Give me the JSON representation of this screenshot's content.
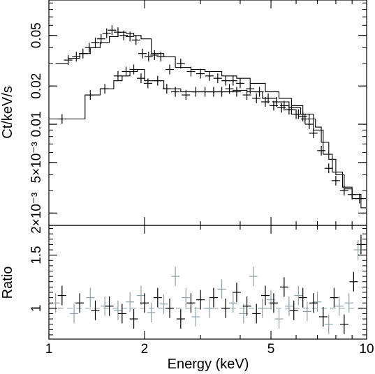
{
  "chart_data": [
    {
      "panel": "spectrum",
      "type": "line",
      "ylabel": "Ct/keV/s",
      "xscale": "log",
      "yscale": "log",
      "xlim": [
        1,
        10
      ],
      "ylim": [
        0.0016,
        0.095
      ],
      "y_ticks": [
        {
          "value": 0.002,
          "label": "2×10⁻³"
        },
        {
          "value": 0.005,
          "label": "5×10⁻³"
        },
        {
          "value": 0.01,
          "label": "0.01"
        },
        {
          "value": 0.02,
          "label": "0.02"
        },
        {
          "value": 0.05,
          "label": "0.05"
        }
      ],
      "series": [
        {
          "color": "#000000",
          "style": "data crosses",
          "x": [
            1.15,
            1.22,
            1.28,
            1.34,
            1.4,
            1.46,
            1.52,
            1.58,
            1.65,
            1.72,
            1.8,
            1.88,
            1.97,
            2.06,
            2.15,
            2.25
          ],
          "y": [
            0.032,
            0.034,
            0.036,
            0.04,
            0.044,
            0.047,
            0.052,
            0.055,
            0.053,
            0.05,
            0.049,
            0.046,
            0.036,
            0.034,
            0.035,
            0.034
          ]
        },
        {
          "color": "#000000",
          "style": "data crosses",
          "x": [
            2.4,
            2.6,
            2.8,
            3.0,
            3.2,
            3.4,
            3.6,
            3.8,
            4.0,
            4.3,
            4.6,
            4.9,
            5.2,
            5.5,
            5.8,
            6.1,
            6.4,
            6.8,
            7.2,
            7.6,
            8.0,
            8.5,
            9.0,
            9.5
          ],
          "y": [
            0.027,
            0.03,
            0.026,
            0.025,
            0.024,
            0.023,
            0.022,
            0.022,
            0.021,
            0.019,
            0.018,
            0.016,
            0.015,
            0.014,
            0.013,
            0.012,
            0.011,
            0.0085,
            0.0062,
            0.0045,
            0.0036,
            0.003,
            0.0028,
            0.0026
          ]
        },
        {
          "color": "#000000",
          "style": "data crosses",
          "x": [
            1.1,
            1.35,
            1.5,
            1.65,
            1.75,
            1.85,
            1.95,
            2.05,
            2.2,
            2.35,
            2.5,
            2.7,
            2.9,
            3.1,
            3.3,
            3.5,
            3.7,
            3.9,
            4.2,
            4.5,
            4.8,
            5.1,
            5.4,
            5.7,
            6.0,
            6.3,
            6.6
          ],
          "y": [
            0.011,
            0.017,
            0.019,
            0.024,
            0.026,
            0.027,
            0.023,
            0.021,
            0.022,
            0.019,
            0.018,
            0.017,
            0.018,
            0.018,
            0.018,
            0.018,
            0.019,
            0.018,
            0.017,
            0.016,
            0.015,
            0.014,
            0.0135,
            0.013,
            0.012,
            0.0115,
            0.01
          ]
        },
        {
          "color": "#000000",
          "style": "model step",
          "x": [
            1.05,
            1.15,
            1.25,
            1.35,
            1.45,
            1.55,
            1.65,
            1.75,
            1.85,
            1.95,
            2.1,
            2.3,
            2.5,
            2.8,
            3.1,
            3.5,
            3.9,
            4.3,
            4.8,
            5.3,
            5.8,
            6.3,
            6.8,
            7.3,
            7.8,
            8.4,
            9.0,
            9.6
          ],
          "y": [
            0.03,
            0.033,
            0.036,
            0.04,
            0.044,
            0.049,
            0.053,
            0.052,
            0.05,
            0.047,
            0.036,
            0.034,
            0.028,
            0.027,
            0.026,
            0.024,
            0.023,
            0.021,
            0.018,
            0.016,
            0.014,
            0.012,
            0.009,
            0.0058,
            0.0042,
            0.0032,
            0.0028,
            0.0026
          ]
        },
        {
          "color": "#000000",
          "style": "model step",
          "x": [
            1.0,
            1.3,
            1.45,
            1.6,
            1.7,
            1.8,
            1.9,
            2.0,
            2.3,
            2.6,
            3.0,
            3.4,
            3.8,
            4.2,
            4.7,
            5.2,
            5.7,
            6.2,
            6.6,
            6.9,
            7.2,
            7.6,
            8.0,
            8.5,
            9.0,
            9.6
          ],
          "y": [
            0.011,
            0.017,
            0.019,
            0.022,
            0.024,
            0.026,
            0.027,
            0.022,
            0.019,
            0.018,
            0.018,
            0.018,
            0.0185,
            0.018,
            0.016,
            0.015,
            0.0135,
            0.012,
            0.011,
            0.0095,
            0.0072,
            0.0053,
            0.004,
            0.0031,
            0.0026,
            0.0022
          ]
        }
      ]
    },
    {
      "panel": "ratio",
      "type": "scatter",
      "ylabel": "Ratio",
      "xlabel": "Energy (keV)",
      "xscale": "log",
      "xlim": [
        1,
        10
      ],
      "ylim": [
        0.71,
        1.78
      ],
      "x_ticks": [
        {
          "value": 1,
          "label": "1"
        },
        {
          "value": 2,
          "label": "2"
        },
        {
          "value": 5,
          "label": "5"
        },
        {
          "value": 10,
          "label": "10"
        }
      ],
      "y_ticks": [
        {
          "value": 1,
          "label": "1"
        },
        {
          "value": 1.5,
          "label": "1.5"
        }
      ],
      "reference_line": 1,
      "series": [
        {
          "color": "#000000",
          "x": [
            1.1,
            1.25,
            1.4,
            1.55,
            1.7,
            1.85,
            2.0,
            2.2,
            2.4,
            2.6,
            2.8,
            3.0,
            3.3,
            3.6,
            3.9,
            4.2,
            4.5,
            4.8,
            5.1,
            5.5,
            5.9,
            6.3,
            6.8,
            7.3,
            7.9,
            8.5,
            9.1,
            9.6
          ],
          "y": [
            1.12,
            1.05,
            0.98,
            1.02,
            0.95,
            0.9,
            1.05,
            1.1,
            1.0,
            0.9,
            1.05,
            1.08,
            1.1,
            1.0,
            1.15,
            1.02,
            0.95,
            1.12,
            1.05,
            1.2,
            0.98,
            1.1,
            1.05,
            0.92,
            1.1,
            0.85,
            1.25,
            1.6
          ]
        },
        {
          "color": "#8fa0a8",
          "x": [
            1.05,
            1.2,
            1.35,
            1.5,
            1.65,
            1.8,
            1.95,
            2.1,
            2.3,
            2.5,
            2.7,
            2.9,
            3.2,
            3.5,
            3.8,
            4.1,
            4.4,
            4.7,
            5.0,
            5.3,
            5.7,
            6.1,
            6.5,
            7.0,
            7.6,
            8.2,
            8.8,
            9.4
          ],
          "y": [
            1.05,
            0.95,
            1.1,
            1.02,
            0.98,
            1.06,
            1.12,
            0.96,
            1.04,
            1.3,
            1.1,
            0.92,
            1.0,
            1.18,
            1.05,
            0.95,
            1.3,
            1.0,
            1.08,
            0.9,
            1.02,
            1.12,
            0.97,
            1.06,
            0.85,
            1.02,
            1.05,
            1.55
          ]
        }
      ]
    }
  ]
}
